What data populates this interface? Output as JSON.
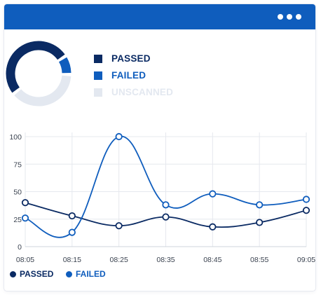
{
  "window": {
    "menu_icon": "more-horizontal-icon",
    "titlebar_color": "#0f5dbd"
  },
  "summary": {
    "legend": [
      {
        "label": "PASSED",
        "color": "#0a2a63"
      },
      {
        "label": "FAILED",
        "color": "#0f5dbd"
      },
      {
        "label": "UNSCANNED",
        "color": "#e3e8f0"
      }
    ],
    "donut_fractions": {
      "passed": 0.5,
      "failed": 0.08,
      "unscanned": 0.37,
      "gaps": 0.05
    }
  },
  "chart_data": {
    "type": "line",
    "x": [
      "08:05",
      "08:15",
      "08:25",
      "08:35",
      "08:45",
      "08:55",
      "09:05"
    ],
    "series": [
      {
        "name": "PASSED",
        "color": "#0a2a63",
        "values": [
          40,
          28,
          19,
          27,
          18,
          22,
          33
        ]
      },
      {
        "name": "FAILED",
        "color": "#0f5dbd",
        "values": [
          26,
          13,
          100,
          38,
          48,
          38,
          43
        ]
      }
    ],
    "ylim": [
      0,
      100
    ],
    "yticks": [
      "0",
      "25",
      "50",
      "75",
      "100"
    ],
    "grid": true,
    "legend_position": "bottom-left"
  }
}
